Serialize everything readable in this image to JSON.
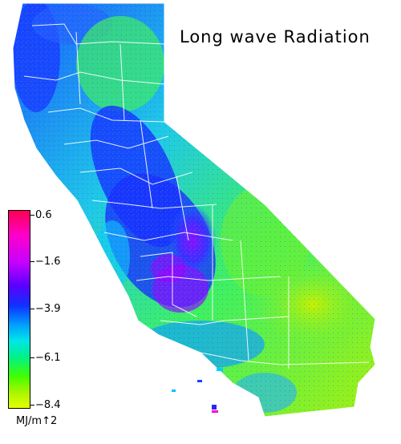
{
  "map": {
    "title": "Long wave Radiation",
    "region": "California",
    "colors": {
      "high": "#ff0050",
      "magenta": "#ff00c8",
      "purple": "#8800ff",
      "blue": "#1030ff",
      "cyan": "#00d0f0",
      "green": "#30f040",
      "low": "#e6ff00",
      "border": "#ffffff"
    }
  },
  "legend": {
    "ticks": [
      "0.6",
      "−1.6",
      "−3.9",
      "−6.1",
      "−8.4"
    ],
    "units": "MJ/m↑2",
    "range": [
      -8.4,
      0.6
    ]
  }
}
